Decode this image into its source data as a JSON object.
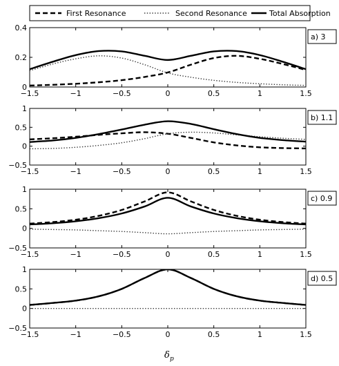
{
  "chart_data": {
    "type": "line",
    "xlabel": "δp",
    "xlabel_main": "δ",
    "xlabel_sub": "p",
    "legend": {
      "placement": "top",
      "entries": [
        {
          "name": "First Resonance",
          "style": "dashed"
        },
        {
          "name": "Second Resonance",
          "style": "dotted"
        },
        {
          "name": "Total Absorption",
          "style": "solid"
        }
      ]
    },
    "xlim": [
      -1.5,
      1.5
    ],
    "xticks": [
      -1.5,
      -1,
      -0.5,
      0,
      0.5,
      1,
      1.5
    ],
    "xtick_labels": [
      "−1.5",
      "−1",
      "−0.5",
      "0",
      "0.5",
      "1",
      "1.5"
    ],
    "x": [
      -1.5,
      -1.25,
      -1.0,
      -0.75,
      -0.5,
      -0.25,
      0.0,
      0.25,
      0.5,
      0.75,
      1.0,
      1.25,
      1.5
    ],
    "panels": [
      {
        "tag": "a) 3",
        "ylim": [
          0,
          0.4
        ],
        "yticks": [
          0,
          0.2,
          0.4
        ],
        "ytick_labels": [
          "0",
          "0.2",
          "0.4"
        ],
        "series": [
          {
            "name": "First Resonance",
            "values": [
              0.01,
              0.015,
              0.022,
              0.032,
              0.046,
              0.068,
              0.098,
              0.15,
              0.195,
              0.21,
              0.19,
              0.155,
              0.115
            ]
          },
          {
            "name": "Second Resonance",
            "values": [
              0.11,
              0.155,
              0.19,
              0.21,
              0.195,
              0.15,
              0.095,
              0.066,
              0.045,
              0.031,
              0.022,
              0.015,
              0.011
            ]
          },
          {
            "name": "Total Absorption",
            "values": [
              0.12,
              0.17,
              0.215,
              0.242,
              0.24,
              0.21,
              0.182,
              0.21,
              0.24,
              0.242,
              0.215,
              0.17,
              0.12
            ]
          }
        ]
      },
      {
        "tag": "b) 1.1",
        "ylim": [
          -0.5,
          1
        ],
        "yticks": [
          -0.5,
          0,
          0.5,
          1
        ],
        "ytick_labels": [
          "−0.5",
          "0",
          "0.5",
          "1"
        ],
        "series": [
          {
            "name": "First Resonance",
            "values": [
              0.18,
              0.21,
              0.25,
              0.3,
              0.34,
              0.37,
              0.33,
              0.22,
              0.1,
              0.02,
              -0.03,
              -0.05,
              -0.06
            ]
          },
          {
            "name": "Second Resonance",
            "values": [
              -0.07,
              -0.06,
              -0.03,
              0.02,
              0.09,
              0.2,
              0.33,
              0.37,
              0.35,
              0.3,
              0.25,
              0.21,
              0.18
            ]
          },
          {
            "name": "Total Absorption",
            "values": [
              0.11,
              0.15,
              0.22,
              0.32,
              0.44,
              0.57,
              0.66,
              0.59,
              0.45,
              0.32,
              0.22,
              0.16,
              0.12
            ]
          }
        ]
      },
      {
        "tag": "c) 0.9",
        "ylim": [
          -0.5,
          1
        ],
        "yticks": [
          -0.5,
          0,
          0.5,
          1
        ],
        "ytick_labels": [
          "−0.5",
          "0",
          "0.5",
          "1"
        ],
        "series": [
          {
            "name": "First Resonance",
            "values": [
              0.12,
              0.16,
              0.22,
              0.32,
              0.47,
              0.69,
              0.92,
              0.69,
              0.47,
              0.32,
              0.22,
              0.16,
              0.12
            ]
          },
          {
            "name": "Second Resonance",
            "values": [
              -0.02,
              -0.03,
              -0.04,
              -0.06,
              -0.08,
              -0.11,
              -0.14,
              -0.11,
              -0.08,
              -0.06,
              -0.04,
              -0.03,
              -0.02
            ]
          },
          {
            "name": "Total Absorption",
            "values": [
              0.1,
              0.13,
              0.18,
              0.26,
              0.38,
              0.56,
              0.78,
              0.56,
              0.38,
              0.26,
              0.18,
              0.13,
              0.1
            ]
          }
        ]
      },
      {
        "tag": "d) 0.5",
        "ylim": [
          -0.5,
          1
        ],
        "yticks": [
          -0.5,
          0,
          0.5,
          1
        ],
        "ytick_labels": [
          "−0.5",
          "0",
          "0.5",
          "1"
        ],
        "series": [
          {
            "name": "First Resonance",
            "values": [
              0.09,
              0.14,
              0.2,
              0.31,
              0.5,
              0.78,
              1.0,
              0.78,
              0.5,
              0.31,
              0.2,
              0.14,
              0.09
            ]
          },
          {
            "name": "Second Resonance",
            "values": [
              0,
              0,
              0,
              0,
              0,
              0,
              0,
              0,
              0,
              0,
              0,
              0,
              0
            ]
          },
          {
            "name": "Total Absorption",
            "values": [
              0.09,
              0.14,
              0.2,
              0.31,
              0.5,
              0.78,
              1.0,
              0.78,
              0.5,
              0.31,
              0.2,
              0.14,
              0.09
            ]
          }
        ]
      }
    ],
    "grid": false,
    "colors": {
      "line": "#000000",
      "second_resonance": "#333333",
      "background": "#ffffff"
    }
  }
}
